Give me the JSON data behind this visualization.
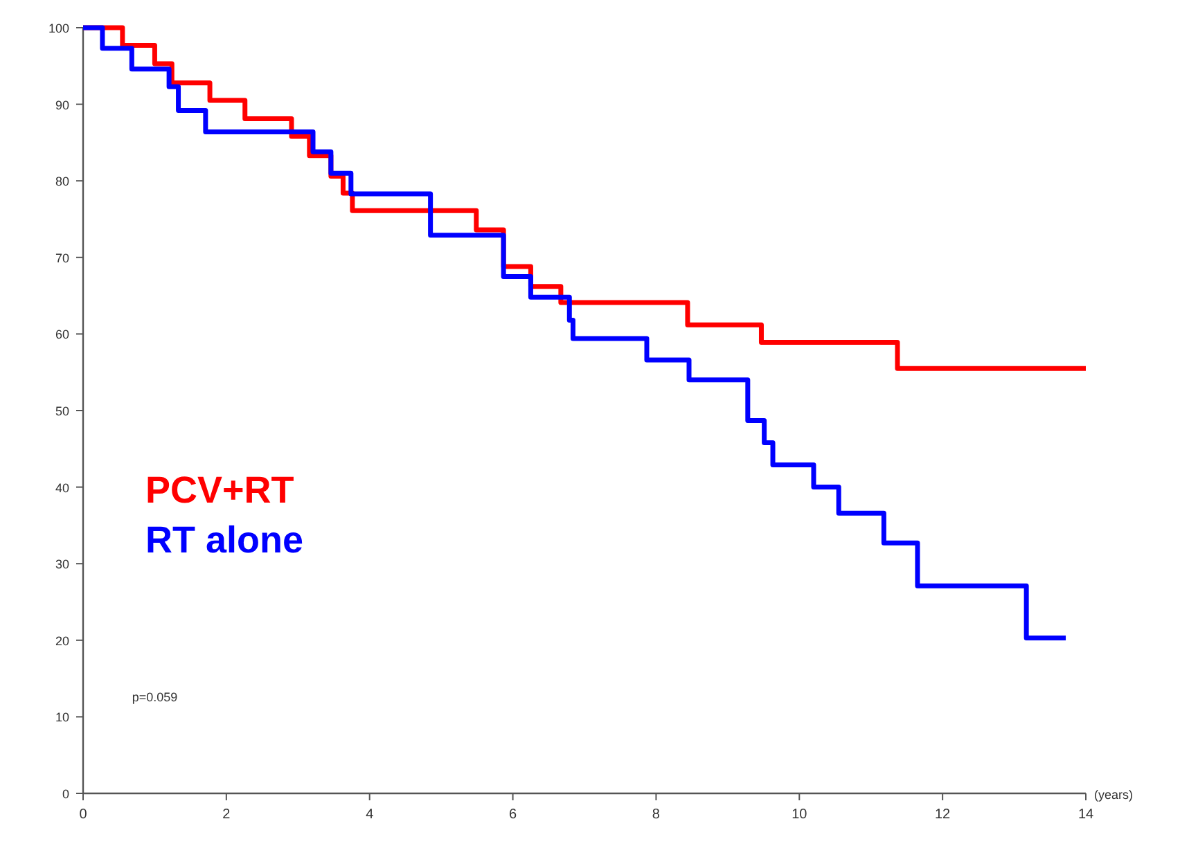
{
  "chart_data": {
    "type": "step",
    "xlabel": "(years)",
    "xlim": [
      0,
      14
    ],
    "xticks": [
      0,
      2,
      4,
      6,
      8,
      10,
      12,
      14
    ],
    "ylim": [
      0,
      100
    ],
    "yticks": [
      0,
      10,
      20,
      30,
      40,
      50,
      60,
      70,
      80,
      90,
      100
    ],
    "grid": false,
    "legend": "left",
    "annotations": [
      "p=0.059"
    ],
    "series": [
      {
        "name": "PCV+RT",
        "color": "#ff0000",
        "x": [
          0,
          0.55,
          1.0,
          1.24,
          1.77,
          2.26,
          2.91,
          3.16,
          3.46,
          3.63,
          3.76,
          5.49,
          5.87,
          6.25,
          6.67,
          8.44,
          9.47,
          11.37,
          14.0
        ],
        "values": [
          100,
          97.7,
          95.3,
          92.8,
          90.5,
          88.1,
          85.8,
          83.3,
          80.6,
          78.4,
          76.1,
          73.6,
          68.8,
          66.2,
          64.1,
          61.2,
          58.9,
          55.5,
          55.5
        ]
      },
      {
        "name": "RT alone",
        "color": "#0000ff",
        "x": [
          0,
          0.27,
          0.68,
          1.2,
          1.33,
          1.71,
          3.21,
          3.46,
          3.74,
          4.85,
          5.87,
          6.25,
          6.79,
          6.84,
          7.87,
          8.46,
          9.28,
          9.51,
          9.63,
          10.2,
          10.55,
          11.18,
          11.65,
          13.17,
          13.72
        ],
        "values": [
          100,
          97.3,
          94.6,
          92.3,
          89.2,
          86.4,
          83.8,
          81.0,
          78.3,
          72.9,
          67.5,
          64.8,
          61.8,
          59.4,
          56.6,
          54.0,
          48.7,
          45.8,
          42.9,
          40.0,
          36.6,
          32.7,
          27.1,
          20.3,
          20.3
        ]
      }
    ]
  }
}
